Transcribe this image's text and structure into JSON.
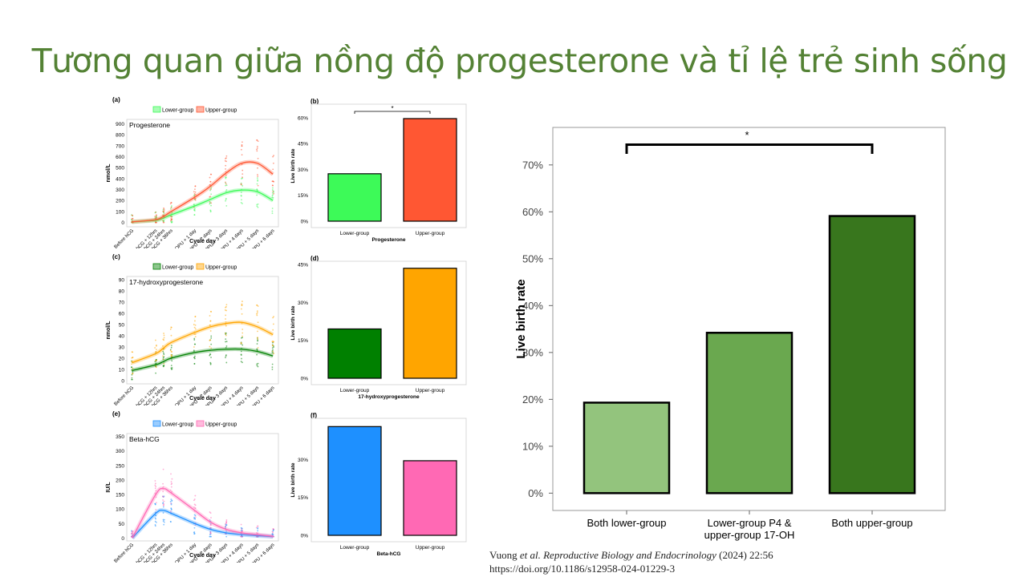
{
  "slide_title": "Tương quan giữa nồng độ progesterone và tỉ lệ trẻ sinh sống",
  "colors": {
    "title": "#548235",
    "prog_lower": "#3dfa58",
    "prog_upper": "#ff5733",
    "ohp_lower": "#008000",
    "ohp_upper": "#ffa500",
    "hcg_lower": "#1e90ff",
    "hcg_upper": "#ff69b4",
    "comb_1": "#93c47d",
    "comb_2": "#6aa84f",
    "comb_3": "#38761d"
  },
  "citation": {
    "authors": "Vuong",
    "etal": "et al.",
    "journal": "Reproductive Biology and Endocrinology",
    "ref": "(2024) 22:56",
    "doi": "https://doi.org/10.1186/s12958-024-01229-3"
  },
  "chart_data": [
    {
      "panel": "(a)",
      "type": "line",
      "title": "Progesterone",
      "xlabel": "Cycle day",
      "ylabel": "nmol/L",
      "legend": [
        "Lower-group",
        "Upper-group"
      ],
      "legend_position": "top",
      "categories": [
        "Before hCG",
        "hCG + 12hrs",
        "hCG + 24hrs",
        "hCG + 36hrs",
        "OPU + 1 day",
        "OPU + 2 days",
        "OPU + 3 days",
        "OPU + 4 days",
        "OPU + 5 days",
        "OPU + 6 days"
      ],
      "x": [
        -1,
        0.5,
        1,
        1.5,
        3,
        4,
        5,
        6,
        7,
        8
      ],
      "yticks": [
        0,
        100,
        200,
        300,
        400,
        500,
        600,
        700,
        800,
        900
      ],
      "ylim": [
        -40,
        940
      ],
      "series": [
        {
          "name": "Lower-group",
          "values": [
            5,
            20,
            40,
            70,
            150,
            210,
            270,
            295,
            280,
            200
          ]
        },
        {
          "name": "Upper-group",
          "values": [
            5,
            25,
            55,
            100,
            230,
            330,
            450,
            540,
            540,
            440
          ]
        }
      ]
    },
    {
      "panel": "(b)",
      "type": "bar",
      "xlabel": "Progesterone",
      "ylabel": "Live birth rate",
      "categories": [
        "Lower-group",
        "Upper-group"
      ],
      "values": [
        27.5,
        59.5
      ],
      "yticks": [
        "0%",
        "15%",
        "30%",
        "45%",
        "60%"
      ],
      "ylim": [
        0,
        66
      ],
      "annotation": "*"
    },
    {
      "panel": "(c)",
      "type": "line",
      "title": "17-hydroxyprogesterone",
      "xlabel": "Cycle day",
      "ylabel": "nmol/L",
      "legend": [
        "Lower-group",
        "Upper-group"
      ],
      "legend_position": "top",
      "categories": [
        "Before hCG",
        "hCG + 12hrs",
        "hCG + 24hrs",
        "hCG + 36hrs",
        "OPU + 1 day",
        "OPU + 2 days",
        "OPU + 3 days",
        "OPU + 4 days",
        "OPU + 5 days",
        "OPU + 6 days"
      ],
      "x": [
        -1,
        0.5,
        1,
        1.5,
        3,
        4,
        5,
        6,
        7,
        8
      ],
      "yticks": [
        0,
        10,
        20,
        30,
        40,
        50,
        60,
        70,
        80,
        90
      ],
      "ylim": [
        -3,
        93
      ],
      "series": [
        {
          "name": "Lower-group",
          "values": [
            9,
            14,
            17,
            20,
            25,
            27,
            28,
            28,
            26,
            22
          ]
        },
        {
          "name": "Upper-group",
          "values": [
            16,
            24,
            29,
            34,
            43,
            48,
            51,
            52,
            48,
            41
          ]
        }
      ]
    },
    {
      "panel": "(d)",
      "type": "bar",
      "xlabel": "17-hydroxyprogesterone",
      "ylabel": "Live birth rate",
      "categories": [
        "Lower-group",
        "Upper-group"
      ],
      "values": [
        19.5,
        43.5
      ],
      "yticks": [
        "0%",
        "15%",
        "30%",
        "45%"
      ],
      "ylim": [
        0,
        45
      ]
    },
    {
      "panel": "(e)",
      "type": "line",
      "title": "Beta-hCG",
      "xlabel": "Cycle day",
      "ylabel": "IU/L",
      "legend": [
        "Lower-group",
        "Upper-group"
      ],
      "legend_position": "top",
      "categories": [
        "Before hCG",
        "hCG + 12hrs",
        "hCG + 24hrs",
        "hCG + 36hrs",
        "OPU + 1 day",
        "OPU + 2 days",
        "OPU + 3 days",
        "OPU + 4 days",
        "OPU + 5 days",
        "OPU + 6 days"
      ],
      "x": [
        -1,
        0.5,
        1,
        1.5,
        3,
        4,
        5,
        6,
        7,
        8
      ],
      "yticks": [
        0,
        50,
        100,
        150,
        200,
        250,
        300,
        350
      ],
      "ylim": [
        -10,
        360
      ],
      "series": [
        {
          "name": "Lower-group",
          "values": [
            0,
            85,
            95,
            85,
            50,
            30,
            18,
            12,
            8,
            5
          ]
        },
        {
          "name": "Upper-group",
          "values": [
            0,
            150,
            170,
            155,
            95,
            55,
            30,
            18,
            12,
            6
          ]
        }
      ]
    },
    {
      "panel": "(f)",
      "type": "bar",
      "xlabel": "Beta-hCG",
      "ylabel": "Live birth rate",
      "categories": [
        "Lower-group",
        "Upper-group"
      ],
      "values": [
        43,
        29.5
      ],
      "yticks": [
        "0%",
        "15%",
        "30%"
      ],
      "ylim": [
        0,
        45
      ]
    },
    {
      "type": "bar",
      "ylabel": "Live birth rate",
      "categories": [
        [
          "Both lower-group"
        ],
        [
          "Lower-group P4 &",
          "upper-group 17-OH"
        ],
        [
          "Both upper-group"
        ]
      ],
      "values": [
        19.3,
        34.2,
        59.1
      ],
      "yticks": [
        "0%",
        "10%",
        "20%",
        "30%",
        "40%",
        "50%",
        "60%",
        "70%"
      ],
      "ylim": [
        -3.7,
        78
      ],
      "annotation": "*"
    }
  ]
}
